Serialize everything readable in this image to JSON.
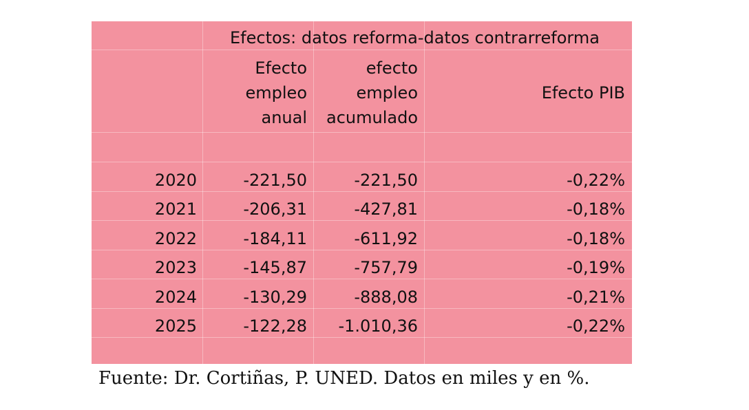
{
  "table": {
    "title": "Efectos: datos reforma-datos contrarreforma",
    "headers": [
      "",
      "Efecto\nempleo\nanual",
      "efecto\nempleo\nacumulado",
      "Efecto PIB"
    ],
    "rows": [
      {
        "year": "2020",
        "anual": "-221,50",
        "acumulado": "-221,50",
        "pib": "-0,22%"
      },
      {
        "year": "2021",
        "anual": "-206,31",
        "acumulado": "-427,81",
        "pib": "-0,18%"
      },
      {
        "year": "2022",
        "anual": "-184,11",
        "acumulado": "-611,92",
        "pib": "-0,18%"
      },
      {
        "year": "2023",
        "anual": "-145,87",
        "acumulado": "-757,79",
        "pib": "-0,19%"
      },
      {
        "year": "2024",
        "anual": "-130,29",
        "acumulado": "-888,08",
        "pib": "-0,21%"
      },
      {
        "year": "2025",
        "anual": "-122,28",
        "acumulado": "-1.010,36",
        "pib": "-0,22%"
      }
    ],
    "background": "#f3929f"
  },
  "caption": "Fuente: Dr. Cortiñas, P. UNED. Datos en miles y en %."
}
